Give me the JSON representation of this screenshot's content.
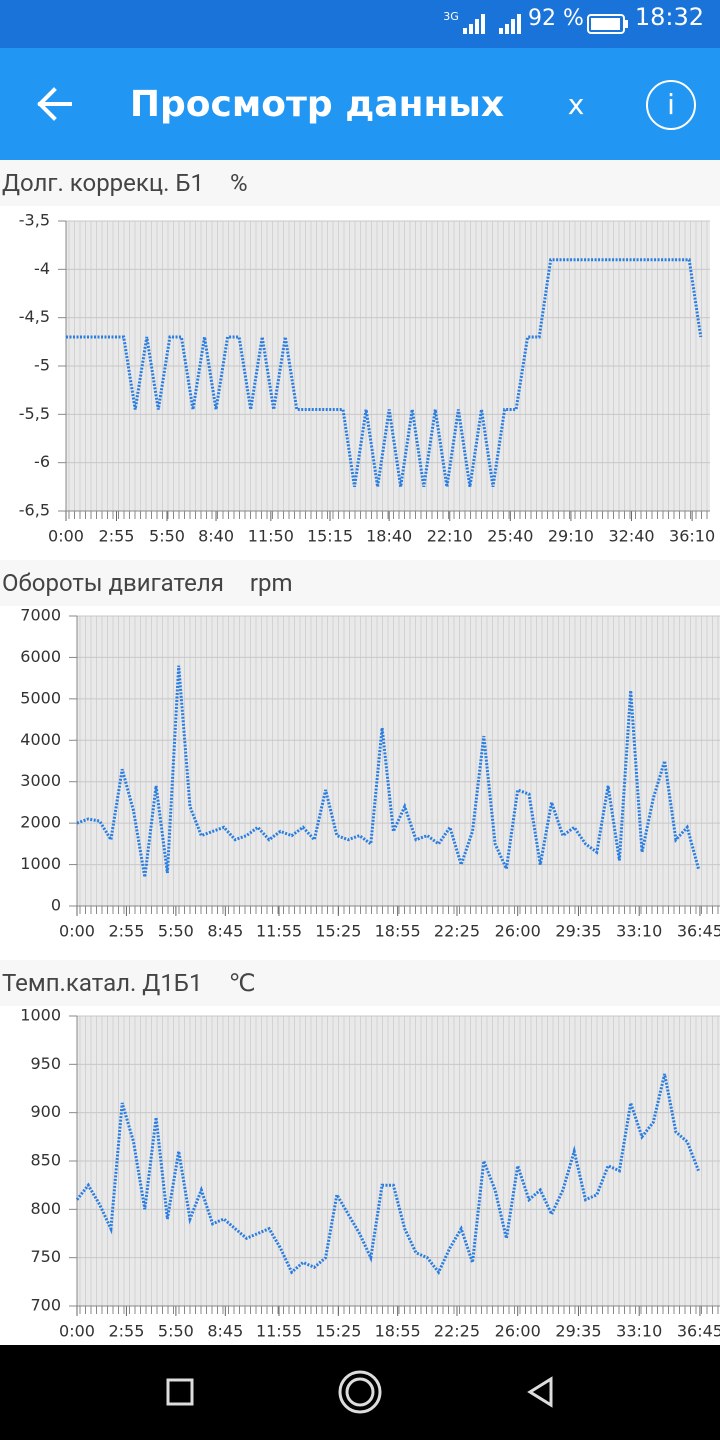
{
  "status_bar": {
    "network": "3G",
    "battery": "92 %",
    "time": "18:32"
  },
  "app_bar": {
    "title": "Просмотр данных",
    "close": "x",
    "info": "i"
  },
  "chart_data": [
    {
      "type": "line",
      "title": "Долг. коррекц. Б1",
      "unit": "%",
      "color": "#2a7de1",
      "x": [
        0,
        40,
        80,
        120,
        160,
        200,
        240,
        280,
        320,
        360,
        400,
        440,
        480,
        520,
        560,
        600,
        640,
        680,
        720,
        760,
        800,
        840,
        880,
        920,
        960,
        1000,
        1040,
        1080,
        1120,
        1160,
        1200,
        1240,
        1280,
        1320,
        1360,
        1400,
        1440,
        1480,
        1520,
        1560,
        1600,
        1640,
        1680,
        1720,
        1760,
        1800,
        1840,
        1880,
        1920,
        1960,
        2000,
        2040,
        2080,
        2120,
        2160,
        2200
      ],
      "values": [
        -4.7,
        -4.7,
        -4.7,
        -4.7,
        -4.7,
        -4.7,
        -5.45,
        -4.7,
        -5.45,
        -4.7,
        -4.7,
        -5.45,
        -4.7,
        -5.45,
        -4.7,
        -4.7,
        -5.45,
        -4.7,
        -5.45,
        -4.7,
        -5.45,
        -5.45,
        -5.45,
        -5.45,
        -5.45,
        -6.25,
        -5.45,
        -6.25,
        -5.45,
        -6.25,
        -5.45,
        -6.25,
        -5.45,
        -6.25,
        -5.45,
        -6.25,
        -5.45,
        -6.25,
        -5.45,
        -5.45,
        -4.7,
        -4.7,
        -3.9,
        -3.9,
        -3.9,
        -3.9,
        -3.9,
        -3.9,
        -3.9,
        -3.9,
        -3.9,
        -3.9,
        -3.9,
        -3.9,
        -3.9,
        -4.7
      ],
      "xlim": [
        0,
        2232
      ],
      "xticks": [
        {
          "value": 0,
          "label": "0:00"
        },
        {
          "value": 175,
          "label": "2:55"
        },
        {
          "value": 350,
          "label": "5:50"
        },
        {
          "value": 520,
          "label": "8:40"
        },
        {
          "value": 710,
          "label": "11:50"
        },
        {
          "value": 915,
          "label": "15:15"
        },
        {
          "value": 1120,
          "label": "18:40"
        },
        {
          "value": 1330,
          "label": "22:10"
        },
        {
          "value": 1540,
          "label": "25:40"
        },
        {
          "value": 1750,
          "label": "29:10"
        },
        {
          "value": 1960,
          "label": "32:40"
        },
        {
          "value": 2170,
          "label": "36:10"
        }
      ],
      "ylim": [
        -6.5,
        -3.5
      ],
      "yticks": [
        {
          "value": -6.5,
          "label": "-6,5"
        },
        -6,
        {
          "value": -5.5,
          "label": "-5,5"
        },
        -5,
        {
          "value": -4.5,
          "label": "-4,5"
        },
        -4,
        {
          "value": -3.5,
          "label": "-3,5"
        }
      ],
      "grid": true
    },
    {
      "type": "line",
      "title": "Обороты двигателя",
      "unit": "rpm",
      "color": "#2a7de1",
      "x": [
        0,
        40,
        80,
        120,
        160,
        200,
        240,
        280,
        320,
        360,
        400,
        440,
        480,
        520,
        560,
        600,
        640,
        680,
        720,
        760,
        800,
        840,
        880,
        920,
        960,
        1000,
        1040,
        1080,
        1120,
        1160,
        1200,
        1240,
        1280,
        1320,
        1360,
        1400,
        1440,
        1480,
        1520,
        1560,
        1600,
        1640,
        1680,
        1720,
        1760,
        1800,
        1840,
        1880,
        1920,
        1960,
        2000,
        2040,
        2080,
        2120,
        2160,
        2200
      ],
      "values": [
        2000,
        2100,
        2050,
        1600,
        3300,
        2300,
        700,
        2900,
        800,
        5800,
        2400,
        1700,
        1800,
        1900,
        1600,
        1700,
        1900,
        1600,
        1800,
        1700,
        1900,
        1600,
        2800,
        1700,
        1600,
        1700,
        1500,
        4300,
        1800,
        2400,
        1600,
        1700,
        1500,
        1900,
        1000,
        1800,
        4100,
        1500,
        900,
        2800,
        2700,
        1000,
        2500,
        1700,
        1900,
        1500,
        1300,
        2900,
        1100,
        5200,
        1300,
        2600,
        3500,
        1600,
        1900,
        900
      ],
      "xlim": [
        0,
        2276
      ],
      "xticks": [
        {
          "value": 0,
          "label": "0:00"
        },
        {
          "value": 175,
          "label": "2:55"
        },
        {
          "value": 350,
          "label": "5:50"
        },
        {
          "value": 525,
          "label": "8:45"
        },
        {
          "value": 715,
          "label": "11:55"
        },
        {
          "value": 925,
          "label": "15:25"
        },
        {
          "value": 1135,
          "label": "18:55"
        },
        {
          "value": 1345,
          "label": "22:25"
        },
        {
          "value": 1560,
          "label": "26:00"
        },
        {
          "value": 1775,
          "label": "29:35"
        },
        {
          "value": 1990,
          "label": "33:10"
        },
        {
          "value": 2205,
          "label": "36:45"
        }
      ],
      "ylim": [
        0,
        7000
      ],
      "yticks": [
        0,
        1000,
        2000,
        3000,
        4000,
        5000,
        6000,
        7000
      ],
      "grid": true
    },
    {
      "type": "line",
      "title": "Темп.катал. Д1Б1",
      "unit": "℃",
      "color": "#2a7de1",
      "x": [
        0,
        40,
        80,
        120,
        160,
        200,
        240,
        280,
        320,
        360,
        400,
        440,
        480,
        520,
        560,
        600,
        640,
        680,
        720,
        760,
        800,
        840,
        880,
        920,
        960,
        1000,
        1040,
        1080,
        1120,
        1160,
        1200,
        1240,
        1280,
        1320,
        1360,
        1400,
        1440,
        1480,
        1520,
        1560,
        1600,
        1640,
        1680,
        1720,
        1760,
        1800,
        1840,
        1880,
        1920,
        1960,
        2000,
        2040,
        2080,
        2120,
        2160,
        2200
      ],
      "values": [
        810,
        825,
        805,
        780,
        910,
        870,
        800,
        895,
        790,
        860,
        790,
        820,
        785,
        790,
        780,
        770,
        775,
        780,
        760,
        735,
        745,
        740,
        750,
        815,
        795,
        775,
        750,
        825,
        825,
        780,
        755,
        750,
        735,
        760,
        780,
        745,
        850,
        820,
        770,
        845,
        810,
        820,
        795,
        820,
        860,
        810,
        815,
        845,
        840,
        910,
        875,
        890,
        940,
        880,
        870,
        840
      ],
      "xlim": [
        0,
        2276
      ],
      "xticks": [
        {
          "value": 0,
          "label": "0:00"
        },
        {
          "value": 175,
          "label": "2:55"
        },
        {
          "value": 350,
          "label": "5:50"
        },
        {
          "value": 525,
          "label": "8:45"
        },
        {
          "value": 715,
          "label": "11:55"
        },
        {
          "value": 925,
          "label": "15:25"
        },
        {
          "value": 1135,
          "label": "18:55"
        },
        {
          "value": 1345,
          "label": "22:25"
        },
        {
          "value": 1560,
          "label": "26:00"
        },
        {
          "value": 1775,
          "label": "29:35"
        },
        {
          "value": 1990,
          "label": "33:10"
        },
        {
          "value": 2205,
          "label": "36:45"
        }
      ],
      "ylim": [
        700,
        1000
      ],
      "yticks": [
        700,
        750,
        800,
        850,
        900,
        950,
        1000
      ],
      "grid": true
    }
  ]
}
